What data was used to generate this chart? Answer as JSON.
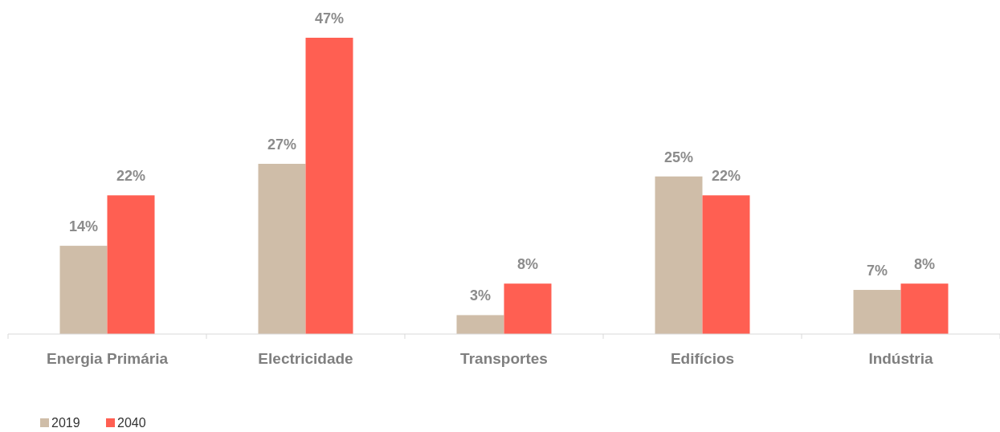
{
  "chart_data": {
    "type": "bar",
    "categories": [
      "Energia Primária",
      "Electricidade",
      "Transportes",
      "Edifícios",
      "Indústria"
    ],
    "series": [
      {
        "name": "2019",
        "color": "#cfbda8",
        "values": [
          14,
          27,
          3,
          25,
          7
        ],
        "value_labels": [
          "14%",
          "27%",
          "3%",
          "25%",
          "7%"
        ]
      },
      {
        "name": "2040",
        "color": "#ff5f52",
        "values": [
          22,
          47,
          8,
          22,
          8
        ],
        "value_labels": [
          "22%",
          "47%",
          "8%",
          "22%",
          "8%"
        ]
      }
    ],
    "legend": "bottom left"
  }
}
